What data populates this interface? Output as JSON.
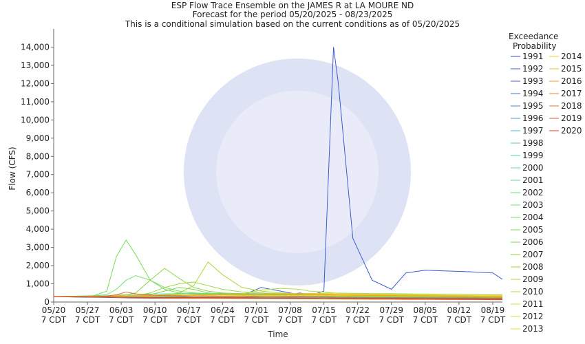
{
  "chart_data": {
    "type": "line",
    "title": "ESP Flow Trace Ensemble on the JAMES R at LA MOURE ND",
    "subtitle": "Forecast for the period 05/20/2025 - 08/23/2025",
    "subtitle2": "This is a conditional simulation based on the current conditions as of 05/20/2025",
    "xlabel": "Time",
    "ylabel": "Flow (CFS)",
    "legend_title": "Exceedance Probability",
    "x": [
      "05/20",
      "05/24",
      "05/28",
      "05/31",
      "06/02",
      "06/04",
      "06/06",
      "06/09",
      "06/12",
      "06/15",
      "06/18",
      "06/21",
      "06/24",
      "06/28",
      "07/02",
      "07/06",
      "07/10",
      "07/12",
      "07/15",
      "07/17",
      "07/18",
      "07/21",
      "07/25",
      "07/29",
      "08/01",
      "08/05",
      "08/10",
      "08/15",
      "08/19",
      "08/21"
    ],
    "xlim": [
      "05/20",
      "08/21"
    ],
    "xticks": [
      {
        "value": "05/20",
        "label": "05/20 7 CDT"
      },
      {
        "value": "05/27",
        "label": "05/27 7 CDT"
      },
      {
        "value": "06/03",
        "label": "06/03 7 CDT"
      },
      {
        "value": "06/10",
        "label": "06/10 7 CDT"
      },
      {
        "value": "06/17",
        "label": "06/17 7 CDT"
      },
      {
        "value": "06/24",
        "label": "06/24 7 CDT"
      },
      {
        "value": "07/01",
        "label": "07/01 7 CDT"
      },
      {
        "value": "07/08",
        "label": "07/08 7 CDT"
      },
      {
        "value": "07/15",
        "label": "07/15 7 CDT"
      },
      {
        "value": "07/22",
        "label": "07/22 7 CDT"
      },
      {
        "value": "07/29",
        "label": "07/29 7 CDT"
      },
      {
        "value": "08/05",
        "label": "08/05 7 CDT"
      },
      {
        "value": "08/12",
        "label": "08/12 7 CDT"
      },
      {
        "value": "08/19",
        "label": "08/19 7 CDT"
      }
    ],
    "ylim": [
      0,
      15000
    ],
    "yticks": [
      0,
      {
        "value": 1000,
        "label": "1,000"
      },
      {
        "value": 2000,
        "label": "2,000"
      },
      {
        "value": 3000,
        "label": "3,000"
      },
      {
        "value": 4000,
        "label": "4,000"
      },
      {
        "value": 5000,
        "label": "5,000"
      },
      {
        "value": 6000,
        "label": "6,000"
      },
      {
        "value": 7000,
        "label": "7,000"
      },
      {
        "value": 8000,
        "label": "8,000"
      },
      {
        "value": 9000,
        "label": "9,000"
      },
      {
        "value": 10000,
        "label": "10,000"
      },
      {
        "value": 11000,
        "label": "11,000"
      },
      {
        "value": 12000,
        "label": "12,000"
      },
      {
        "value": 13000,
        "label": "13,000"
      },
      {
        "value": 14000,
        "label": "14,000"
      }
    ],
    "series": [
      {
        "name": "1991",
        "color": "#3a4fc4",
        "values": [
          300,
          280,
          260,
          250,
          240,
          230,
          220,
          210,
          200,
          200,
          200,
          210,
          220,
          250,
          300,
          350,
          400,
          420,
          300,
          250,
          240,
          230,
          220,
          200,
          190,
          180,
          170,
          160,
          150,
          150
        ]
      },
      {
        "name": "1992",
        "color": "#3a5bd0",
        "values": [
          300,
          280,
          270,
          260,
          250,
          240,
          230,
          220,
          230,
          240,
          250,
          260,
          280,
          300,
          350,
          300,
          300,
          350,
          600,
          14000,
          12000,
          3500,
          1200,
          700,
          1600,
          1750,
          1700,
          1650,
          1600,
          1250
        ]
      },
      {
        "name": "1993",
        "color": "#3f66cf",
        "values": [
          300,
          290,
          280,
          270,
          260,
          250,
          240,
          230,
          220,
          210,
          200,
          220,
          250,
          350,
          800,
          600,
          400,
          350,
          300,
          280,
          260,
          250,
          240,
          230,
          220,
          210,
          200,
          190,
          180,
          180
        ]
      },
      {
        "name": "1994",
        "color": "#4472cc",
        "values": [
          300,
          290,
          280,
          300,
          320,
          310,
          300,
          290,
          280,
          300,
          320,
          330,
          330,
          320,
          310,
          300,
          500,
          400,
          350,
          320,
          310,
          300,
          290,
          280,
          270,
          260,
          250,
          240,
          230,
          230
        ]
      },
      {
        "name": "1995",
        "color": "#4a84d0",
        "values": [
          300,
          300,
          310,
          320,
          330,
          340,
          330,
          320,
          330,
          340,
          350,
          350,
          340,
          330,
          320,
          310,
          300,
          300,
          290,
          280,
          280,
          270,
          270,
          260,
          260,
          250,
          250,
          240,
          240,
          240
        ]
      },
      {
        "name": "1996",
        "color": "#4f9ad4",
        "values": [
          300,
          300,
          300,
          300,
          290,
          290,
          280,
          280,
          270,
          270,
          260,
          260,
          260,
          250,
          250,
          250,
          240,
          240,
          240,
          230,
          230,
          230,
          220,
          220,
          220,
          210,
          210,
          210,
          200,
          200
        ]
      },
      {
        "name": "1997",
        "color": "#55b0d6",
        "values": [
          300,
          310,
          320,
          330,
          330,
          320,
          310,
          300,
          300,
          310,
          320,
          330,
          340,
          350,
          360,
          350,
          340,
          330,
          320,
          310,
          300,
          300,
          290,
          290,
          280,
          280,
          270,
          270,
          260,
          260
        ]
      },
      {
        "name": "1998",
        "color": "#5cc4c8",
        "values": [
          300,
          300,
          310,
          310,
          320,
          320,
          330,
          330,
          340,
          340,
          350,
          400,
          450,
          420,
          400,
          380,
          370,
          360,
          350,
          340,
          330,
          320,
          310,
          300,
          300,
          290,
          290,
          280,
          280,
          280
        ]
      },
      {
        "name": "1999",
        "color": "#5fd0b6",
        "values": [
          300,
          310,
          330,
          350,
          380,
          400,
          420,
          440,
          450,
          460,
          470,
          480,
          480,
          470,
          460,
          450,
          440,
          430,
          420,
          410,
          400,
          390,
          380,
          370,
          360,
          350,
          340,
          330,
          320,
          320
        ]
      },
      {
        "name": "2000",
        "color": "#63d89f",
        "values": [
          300,
          300,
          300,
          310,
          320,
          330,
          340,
          350,
          360,
          370,
          380,
          390,
          400,
          400,
          390,
          380,
          370,
          360,
          350,
          340,
          330,
          320,
          310,
          300,
          300,
          300,
          290,
          290,
          280,
          280
        ]
      },
      {
        "name": "2001",
        "color": "#66de8a",
        "values": [
          300,
          300,
          300,
          300,
          310,
          310,
          310,
          320,
          320,
          330,
          330,
          340,
          340,
          350,
          360,
          370,
          380,
          390,
          400,
          410,
          400,
          390,
          380,
          370,
          360,
          350,
          340,
          330,
          320,
          320
        ]
      },
      {
        "name": "2002",
        "color": "#6be278",
        "values": [
          300,
          310,
          320,
          330,
          340,
          350,
          360,
          370,
          380,
          390,
          400,
          410,
          420,
          430,
          440,
          450,
          460,
          470,
          480,
          490,
          490,
          480,
          470,
          460,
          450,
          440,
          430,
          420,
          410,
          410
        ]
      },
      {
        "name": "2003",
        "color": "#70e46b",
        "values": [
          300,
          320,
          350,
          400,
          700,
          1200,
          1450,
          1200,
          800,
          600,
          500,
          450,
          420,
          400,
          380,
          370,
          360,
          350,
          340,
          330,
          330,
          320,
          310,
          300,
          290,
          280,
          270,
          260,
          250,
          250
        ]
      },
      {
        "name": "2004",
        "color": "#6fe05e",
        "values": [
          300,
          300,
          300,
          310,
          320,
          330,
          340,
          350,
          400,
          450,
          500,
          450,
          420,
          400,
          380,
          360,
          350,
          340,
          330,
          320,
          310,
          300,
          300,
          290,
          280,
          270,
          260,
          250,
          240,
          240
        ]
      },
      {
        "name": "2005",
        "color": "#74dc52",
        "values": [
          300,
          300,
          320,
          600,
          2500,
          3400,
          2600,
          1200,
          700,
          500,
          450,
          420,
          400,
          380,
          360,
          350,
          340,
          330,
          320,
          310,
          300,
          300,
          290,
          280,
          270,
          260,
          250,
          240,
          230,
          230
        ]
      },
      {
        "name": "2006",
        "color": "#7ed84a",
        "values": [
          300,
          300,
          310,
          320,
          330,
          340,
          350,
          400,
          600,
          800,
          700,
          500,
          450,
          420,
          400,
          380,
          370,
          360,
          350,
          340,
          330,
          320,
          310,
          300,
          290,
          280,
          270,
          260,
          250,
          250
        ]
      },
      {
        "name": "2007",
        "color": "#8cd445",
        "values": [
          300,
          300,
          310,
          320,
          350,
          400,
          500,
          1200,
          1850,
          1300,
          800,
          600,
          500,
          450,
          420,
          400,
          380,
          370,
          360,
          350,
          340,
          330,
          320,
          310,
          300,
          290,
          280,
          270,
          260,
          260
        ]
      },
      {
        "name": "2008",
        "color": "#9ad640",
        "values": [
          300,
          300,
          300,
          310,
          320,
          330,
          350,
          500,
          800,
          1000,
          1100,
          900,
          700,
          550,
          500,
          460,
          440,
          420,
          400,
          390,
          380,
          370,
          360,
          350,
          340,
          330,
          320,
          310,
          300,
          300
        ]
      },
      {
        "name": "2009",
        "color": "#a8d83c",
        "values": [
          300,
          300,
          300,
          300,
          310,
          320,
          330,
          350,
          400,
          500,
          900,
          2200,
          1500,
          800,
          600,
          500,
          450,
          420,
          400,
          380,
          370,
          360,
          350,
          340,
          330,
          320,
          310,
          300,
          290,
          290
        ]
      },
      {
        "name": "2010",
        "color": "#b8dc38",
        "values": [
          300,
          300,
          310,
          320,
          330,
          340,
          350,
          360,
          370,
          380,
          390,
          400,
          420,
          450,
          650,
          750,
          700,
          600,
          550,
          500,
          480,
          460,
          440,
          420,
          400,
          380,
          360,
          340,
          320,
          320
        ]
      },
      {
        "name": "2011",
        "color": "#c8e034",
        "values": [
          300,
          300,
          300,
          300,
          300,
          310,
          310,
          310,
          320,
          320,
          320,
          330,
          330,
          330,
          340,
          340,
          340,
          350,
          350,
          350,
          340,
          340,
          330,
          330,
          320,
          320,
          310,
          310,
          300,
          300
        ]
      },
      {
        "name": "2012",
        "color": "#d8e030",
        "values": [
          300,
          290,
          280,
          270,
          260,
          250,
          240,
          230,
          220,
          210,
          200,
          200,
          190,
          190,
          180,
          180,
          170,
          170,
          160,
          160,
          160,
          150,
          150,
          150,
          140,
          140,
          140,
          130,
          130,
          130
        ]
      },
      {
        "name": "2013",
        "color": "#e8dc2c",
        "values": [
          300,
          300,
          310,
          320,
          330,
          340,
          350,
          360,
          370,
          380,
          390,
          400,
          410,
          420,
          430,
          440,
          450,
          460,
          470,
          480,
          470,
          460,
          450,
          440,
          430,
          420,
          410,
          400,
          390,
          390
        ]
      },
      {
        "name": "2014",
        "color": "#f0d02a",
        "values": [
          300,
          300,
          300,
          300,
          310,
          310,
          320,
          320,
          330,
          330,
          340,
          340,
          350,
          350,
          360,
          360,
          370,
          370,
          380,
          380,
          370,
          370,
          360,
          360,
          350,
          350,
          340,
          340,
          330,
          330
        ]
      },
      {
        "name": "2015",
        "color": "#f2b82a",
        "values": [
          300,
          300,
          310,
          320,
          330,
          340,
          350,
          360,
          370,
          380,
          390,
          400,
          410,
          420,
          430,
          440,
          450,
          450,
          440,
          430,
          420,
          410,
          400,
          390,
          380,
          370,
          360,
          350,
          340,
          340
        ]
      },
      {
        "name": "2016",
        "color": "#f2a22a",
        "values": [
          300,
          300,
          300,
          310,
          320,
          330,
          340,
          350,
          360,
          370,
          380,
          390,
          400,
          410,
          420,
          430,
          420,
          410,
          400,
          390,
          380,
          370,
          360,
          350,
          340,
          330,
          320,
          310,
          300,
          300
        ]
      },
      {
        "name": "2017",
        "color": "#ee8a2a",
        "values": [
          300,
          290,
          280,
          270,
          260,
          250,
          250,
          240,
          240,
          230,
          230,
          220,
          220,
          210,
          210,
          200,
          200,
          190,
          190,
          180,
          180,
          180,
          170,
          170,
          160,
          160,
          150,
          150,
          140,
          140
        ]
      },
      {
        "name": "2018",
        "color": "#ea7228",
        "values": [
          300,
          300,
          300,
          320,
          400,
          550,
          450,
          380,
          350,
          330,
          320,
          310,
          300,
          300,
          290,
          290,
          280,
          280,
          270,
          270,
          260,
          260,
          250,
          250,
          240,
          240,
          230,
          230,
          220,
          220
        ]
      },
      {
        "name": "2019",
        "color": "#e45a26",
        "values": [
          300,
          290,
          280,
          270,
          260,
          250,
          240,
          230,
          230,
          220,
          220,
          210,
          210,
          200,
          200,
          190,
          190,
          180,
          180,
          170,
          170,
          170,
          160,
          160,
          150,
          150,
          140,
          140,
          130,
          130
        ]
      },
      {
        "name": "2020",
        "color": "#dc3f22",
        "values": [
          300,
          290,
          280,
          280,
          270,
          270,
          260,
          260,
          250,
          250,
          240,
          240,
          230,
          230,
          220,
          220,
          210,
          210,
          200,
          200,
          200,
          190,
          190,
          180,
          180,
          170,
          170,
          160,
          160,
          160
        ]
      }
    ]
  }
}
